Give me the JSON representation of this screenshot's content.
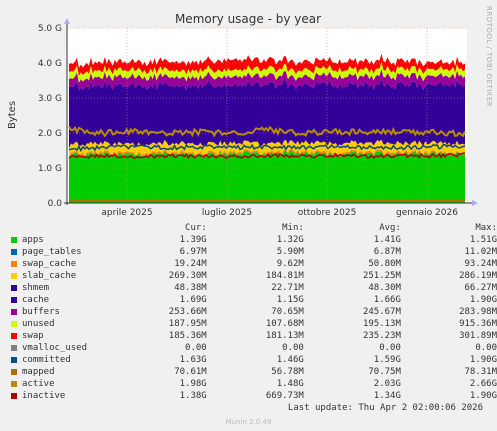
{
  "side_label": "RRDTOOL / TOBI OETIKER",
  "last_update": "Last update: Thu Apr  2 02:00:06 2026",
  "footer": "Munin 2.0.49",
  "legend_headers": {
    "cur": "Cur:",
    "min": "Min:",
    "avg": "Avg:",
    "max": "Max:"
  },
  "legend": [
    {
      "name": "apps",
      "color": "#00cc00",
      "cur": "1.39G",
      "min": "1.32G",
      "avg": "1.41G",
      "max": "1.51G"
    },
    {
      "name": "page_tables",
      "color": "#0066b3",
      "cur": "6.97M",
      "min": "5.90M",
      "avg": "6.87M",
      "max": "11.02M"
    },
    {
      "name": "swap_cache",
      "color": "#ff8000",
      "cur": "19.24M",
      "min": "9.62M",
      "avg": "50.80M",
      "max": "93.24M"
    },
    {
      "name": "slab_cache",
      "color": "#ffcc00",
      "cur": "269.30M",
      "min": "184.81M",
      "avg": "251.25M",
      "max": "286.19M"
    },
    {
      "name": "shmem",
      "color": "#330099",
      "cur": "48.38M",
      "min": "22.71M",
      "avg": "48.30M",
      "max": "66.27M"
    },
    {
      "name": "cache",
      "color": "#330099",
      "cur": "1.69G",
      "min": "1.15G",
      "avg": "1.66G",
      "max": "1.90G"
    },
    {
      "name": "buffers",
      "color": "#990099",
      "cur": "253.66M",
      "min": "70.65M",
      "avg": "245.67M",
      "max": "283.98M"
    },
    {
      "name": "unused",
      "color": "#ccff00",
      "cur": "187.95M",
      "min": "107.68M",
      "avg": "195.13M",
      "max": "915.36M"
    },
    {
      "name": "swap",
      "color": "#ff0000",
      "cur": "185.36M",
      "min": "181.13M",
      "avg": "235.23M",
      "max": "301.89M"
    },
    {
      "name": "vmalloc_used",
      "color": "#808080",
      "cur": "0.00",
      "min": "0.00",
      "avg": "0.00",
      "max": "0.00"
    },
    {
      "name": "committed",
      "color": "#004d80",
      "cur": "1.63G",
      "min": "1.46G",
      "avg": "1.59G",
      "max": "1.90G"
    },
    {
      "name": "mapped",
      "color": "#b36b00",
      "cur": "70.61M",
      "min": "56.78M",
      "avg": "70.75M",
      "max": "78.31M"
    },
    {
      "name": "active",
      "color": "#b38f00",
      "cur": "1.98G",
      "min": "1.48G",
      "avg": "2.03G",
      "max": "2.66G"
    },
    {
      "name": "inactive",
      "color": "#b30000",
      "cur": "1.38G",
      "min": "669.73M",
      "avg": "1.34G",
      "max": "1.90G"
    }
  ],
  "chart_data": {
    "type": "area",
    "title": "Memory usage - by year",
    "ylabel": "Bytes",
    "ylim": [
      0,
      5.0
    ],
    "yunit": "G",
    "y_ticks": [
      {
        "value": 0,
        "label": "0.0"
      },
      {
        "value": 1,
        "label": "1.0 G"
      },
      {
        "value": 2,
        "label": "2.0 G"
      },
      {
        "value": 3,
        "label": "3.0 G"
      },
      {
        "value": 4,
        "label": "4.0 G"
      },
      {
        "value": 5,
        "label": "5.0 G"
      }
    ],
    "x_ticks": [
      {
        "value": 0.15,
        "label": "aprile 2025"
      },
      {
        "value": 0.4,
        "label": "luglio 2025"
      },
      {
        "value": 0.65,
        "label": "ottobre 2025"
      },
      {
        "value": 0.9,
        "label": "gennaio 2026"
      }
    ],
    "stacked_series": [
      {
        "name": "apps",
        "color": "#00cc00",
        "values": [
          1.35,
          1.4,
          1.38,
          1.42,
          1.39,
          1.41,
          1.4,
          1.43,
          1.39,
          1.42,
          1.41,
          1.4,
          1.39
        ]
      },
      {
        "name": "page_tables",
        "color": "#0066b3",
        "values": [
          0.007,
          0.007,
          0.007,
          0.007,
          0.007,
          0.007,
          0.007,
          0.007,
          0.007,
          0.007,
          0.007,
          0.007,
          0.007
        ]
      },
      {
        "name": "swap_cache",
        "color": "#ff8000",
        "values": [
          0.05,
          0.05,
          0.05,
          0.05,
          0.05,
          0.05,
          0.05,
          0.05,
          0.05,
          0.05,
          0.05,
          0.04,
          0.02
        ]
      },
      {
        "name": "slab_cache",
        "color": "#ffcc00",
        "values": [
          0.24,
          0.25,
          0.25,
          0.25,
          0.26,
          0.25,
          0.25,
          0.25,
          0.26,
          0.25,
          0.25,
          0.26,
          0.27
        ]
      },
      {
        "name": "cache",
        "color": "#330099",
        "values": [
          1.65,
          1.64,
          1.66,
          1.64,
          1.67,
          1.65,
          1.66,
          1.64,
          1.67,
          1.66,
          1.66,
          1.67,
          1.69
        ]
      },
      {
        "name": "buffers",
        "color": "#990099",
        "values": [
          0.24,
          0.24,
          0.25,
          0.25,
          0.24,
          0.25,
          0.25,
          0.24,
          0.25,
          0.25,
          0.25,
          0.25,
          0.25
        ]
      },
      {
        "name": "unused",
        "color": "#ccff00",
        "values": [
          0.2,
          0.19,
          0.2,
          0.19,
          0.2,
          0.19,
          0.2,
          0.19,
          0.2,
          0.19,
          0.2,
          0.19,
          0.19
        ]
      },
      {
        "name": "swap",
        "color": "#ff0000",
        "values": [
          0.22,
          0.24,
          0.23,
          0.25,
          0.24,
          0.3,
          0.24,
          0.24,
          0.23,
          0.24,
          0.23,
          0.2,
          0.19
        ]
      }
    ],
    "line_series": [
      {
        "name": "committed",
        "color": "#004d80",
        "values": [
          1.55,
          1.58,
          1.6,
          1.59,
          1.6,
          1.58,
          1.6,
          1.59,
          1.62,
          1.6,
          1.59,
          1.6,
          1.63
        ]
      },
      {
        "name": "active",
        "color": "#b38f00",
        "values": [
          2.1,
          2.0,
          2.05,
          2.0,
          2.02,
          2.0,
          2.1,
          1.98,
          2.05,
          2.0,
          2.03,
          2.02,
          1.98
        ]
      },
      {
        "name": "inactive",
        "color": "#b30000",
        "values": [
          1.3,
          1.35,
          1.32,
          1.36,
          1.34,
          1.33,
          1.35,
          1.34,
          1.36,
          1.33,
          1.35,
          1.34,
          1.38
        ]
      },
      {
        "name": "mapped",
        "color": "#b36b00",
        "values": [
          0.07,
          0.07,
          0.07,
          0.07,
          0.07,
          0.07,
          0.07,
          0.07,
          0.07,
          0.07,
          0.07,
          0.07,
          0.07
        ]
      }
    ]
  }
}
